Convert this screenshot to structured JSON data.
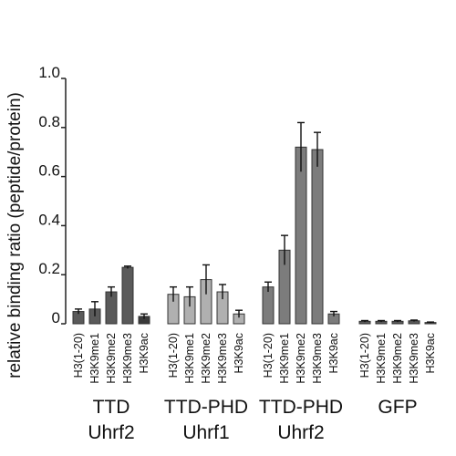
{
  "chart_data": {
    "type": "bar",
    "ylabel": "relative binding ratio (peptide/protein)",
    "ylim": [
      0,
      1.0
    ],
    "yticks": [
      "0",
      "0.2",
      "0.4",
      "0.6",
      "0.8",
      "1.0"
    ],
    "grid": false,
    "groups": [
      {
        "label_line1": "TTD",
        "label_line2": "Uhrf2",
        "bar_colors": [
          "#5a5a5a",
          "#5a5a5a",
          "#5a5a5a",
          "#5a5a5a",
          "#3a3a3a"
        ],
        "bars": [
          {
            "category": "H3(1-20)",
            "value": 0.05,
            "error": 0.01
          },
          {
            "category": "H3K9me1",
            "value": 0.06,
            "error": 0.03
          },
          {
            "category": "H3K9me2",
            "value": 0.13,
            "error": 0.02
          },
          {
            "category": "H3K9me3",
            "value": 0.23,
            "error": 0.005
          },
          {
            "category": "H3K9ac",
            "value": 0.03,
            "error": 0.01
          }
        ]
      },
      {
        "label_line1": "TTD-PHD",
        "label_line2": "Uhrf1",
        "bar_colors": [
          "#b0b0b0",
          "#b0b0b0",
          "#b0b0b0",
          "#b0b0b0",
          "#b0b0b0"
        ],
        "bars": [
          {
            "category": "H3(1-20)",
            "value": 0.12,
            "error": 0.03
          },
          {
            "category": "H3K9me1",
            "value": 0.11,
            "error": 0.04
          },
          {
            "category": "H3K9me2",
            "value": 0.18,
            "error": 0.06
          },
          {
            "category": "H3K9me3",
            "value": 0.13,
            "error": 0.03
          },
          {
            "category": "H3K9ac",
            "value": 0.04,
            "error": 0.015
          }
        ]
      },
      {
        "label_line1": "TTD-PHD",
        "label_line2": "Uhrf2",
        "bar_colors": [
          "#7c7c7c",
          "#7c7c7c",
          "#7c7c7c",
          "#7c7c7c",
          "#7c7c7c"
        ],
        "bars": [
          {
            "category": "H3(1-20)",
            "value": 0.15,
            "error": 0.02
          },
          {
            "category": "H3K9me1",
            "value": 0.3,
            "error": 0.06
          },
          {
            "category": "H3K9me2",
            "value": 0.72,
            "error": 0.1
          },
          {
            "category": "H3K9me3",
            "value": 0.71,
            "error": 0.07
          },
          {
            "category": "H3K9ac",
            "value": 0.04,
            "error": 0.01
          }
        ]
      },
      {
        "label_line1": "GFP",
        "label_line2": "",
        "bar_colors": [
          "#5a5a5a",
          "#5a5a5a",
          "#5a5a5a",
          "#5a5a5a",
          "#5a5a5a"
        ],
        "bars": [
          {
            "category": "H3(1-20)",
            "value": 0.01,
            "error": 0.003
          },
          {
            "category": "H3K9me1",
            "value": 0.01,
            "error": 0.003
          },
          {
            "category": "H3K9me2",
            "value": 0.01,
            "error": 0.003
          },
          {
            "category": "H3K9me3",
            "value": 0.012,
            "error": 0.003
          },
          {
            "category": "H3K9ac",
            "value": 0.005,
            "error": 0.002
          }
        ]
      }
    ]
  }
}
